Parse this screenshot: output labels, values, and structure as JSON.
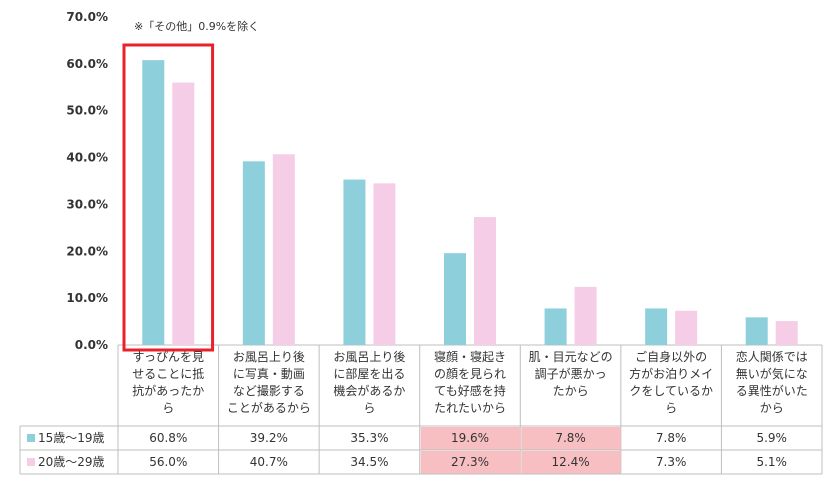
{
  "chart_data": {
    "type": "bar",
    "title": "",
    "note": "※「その他」0.9%を除く",
    "ylim": [
      0,
      70
    ],
    "y_ticks": [
      "0.0%",
      "10.0%",
      "20.0%",
      "30.0%",
      "40.0%",
      "50.0%",
      "60.0%",
      "70.0%"
    ],
    "categories": [
      [
        "すっぴんを見",
        "せることに抵",
        "抗があったか",
        "ら"
      ],
      [
        "お風呂上り後",
        "に写真・動画",
        "など撮影する",
        "ことがあるから"
      ],
      [
        "お風呂上り後",
        "に部屋を出る",
        "機会があるか",
        "ら"
      ],
      [
        "寝顔・寝起き",
        "の顔を見られ",
        "ても好感を持",
        "たれたいから"
      ],
      [
        "肌・目元などの",
        "調子が悪かっ",
        "たから"
      ],
      [
        "ご自身以外の",
        "方がお泊りメイ",
        "クをしているか",
        "ら"
      ],
      [
        "恋人関係では",
        "無いが気にな",
        "る異性がいた",
        "から"
      ]
    ],
    "series": [
      {
        "name": "15歳～19歳",
        "color": "#8ECFDC",
        "values": [
          60.8,
          39.2,
          35.3,
          19.6,
          7.8,
          7.8,
          5.9
        ],
        "labels": [
          "60.8%",
          "39.2%",
          "35.3%",
          "19.6%",
          "7.8%",
          "7.8%",
          "5.9%"
        ]
      },
      {
        "name": "20歳～29歳",
        "color": "#F5CDE7",
        "values": [
          56.0,
          40.7,
          34.5,
          27.3,
          12.4,
          7.3,
          5.1
        ],
        "labels": [
          "56.0%",
          "40.7%",
          "34.5%",
          "27.3%",
          "12.4%",
          "7.3%",
          "5.1%"
        ]
      }
    ],
    "highlight_color": "#E8222A",
    "highlighted_category": 0,
    "highlighted_table_columns": [
      3,
      4
    ],
    "table_highlight_color": "#F7BFC2",
    "grid": false
  }
}
